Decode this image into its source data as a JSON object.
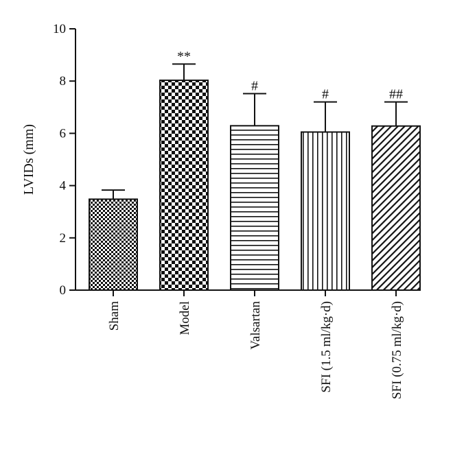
{
  "chart_data": {
    "type": "bar",
    "ylabel": "LVIDs (mm)",
    "ylim": [
      0,
      10
    ],
    "yticks": [
      0,
      2,
      4,
      6,
      8,
      10
    ],
    "categories": [
      "Sham",
      "Model",
      "Valsartan",
      "SFI (1.5 ml/kg·d)",
      "SFI (0.75 ml/kg·d)"
    ],
    "values": [
      3.48,
      8.03,
      6.29,
      6.05,
      6.28
    ],
    "errors": [
      0.35,
      0.62,
      1.23,
      1.15,
      0.92
    ],
    "significance": [
      "",
      "**",
      "#",
      "#",
      "##"
    ],
    "patterns": [
      "fine-checker",
      "coarse-checker",
      "horizontal-lines",
      "vertical-lines",
      "diagonal-lines"
    ],
    "grid": false
  }
}
